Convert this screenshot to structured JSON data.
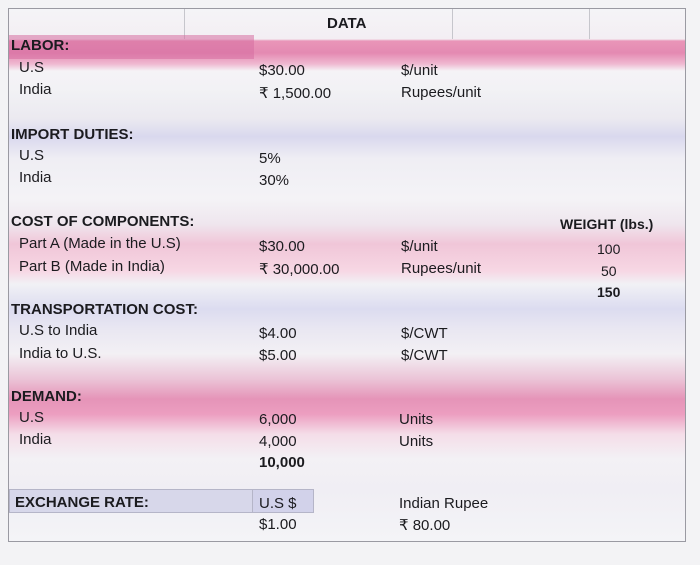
{
  "title": "DATA",
  "labor": {
    "heading": "LABOR:",
    "rows": [
      {
        "label": "U.S",
        "value": "$30.00",
        "unit": "$/unit"
      },
      {
        "label": "India",
        "value": "₹ 1,500.00",
        "unit": "Rupees/unit"
      }
    ]
  },
  "import_duties": {
    "heading": "IMPORT DUTIES:",
    "rows": [
      {
        "label": "U.S",
        "value": "5%"
      },
      {
        "label": "India",
        "value": "30%"
      }
    ]
  },
  "components": {
    "heading": "COST OF COMPONENTS:",
    "weight_header": "WEIGHT (lbs.)",
    "rows": [
      {
        "label": "Part A (Made in the U.S)",
        "value": "$30.00",
        "unit": "$/unit",
        "weight": "100"
      },
      {
        "label": "Part B (Made in India)",
        "value": "₹ 30,000.00",
        "unit": "Rupees/unit",
        "weight": "50"
      }
    ],
    "weight_total": "150"
  },
  "transportation": {
    "heading": "TRANSPORTATION COST:",
    "rows": [
      {
        "label": "U.S to India",
        "value": "$4.00",
        "unit": "$/CWT"
      },
      {
        "label": "India to U.S.",
        "value": "$5.00",
        "unit": "$/CWT"
      }
    ]
  },
  "demand": {
    "heading": "DEMAND:",
    "rows": [
      {
        "label": "U.S",
        "value": "6,000",
        "unit": "Units"
      },
      {
        "label": "India",
        "value": "4,000",
        "unit": "Units"
      }
    ],
    "total": "10,000"
  },
  "exchange": {
    "heading": "EXCHANGE RATE:",
    "us_label": "U.S $",
    "us_value": "$1.00",
    "inr_label": "Indian Rupee",
    "inr_value": "₹ 80.00"
  },
  "colors": {
    "pink_band": "#e48ab2",
    "lavender_band": "#d9d8ee",
    "exchange_cell": "#d7d7ea"
  }
}
